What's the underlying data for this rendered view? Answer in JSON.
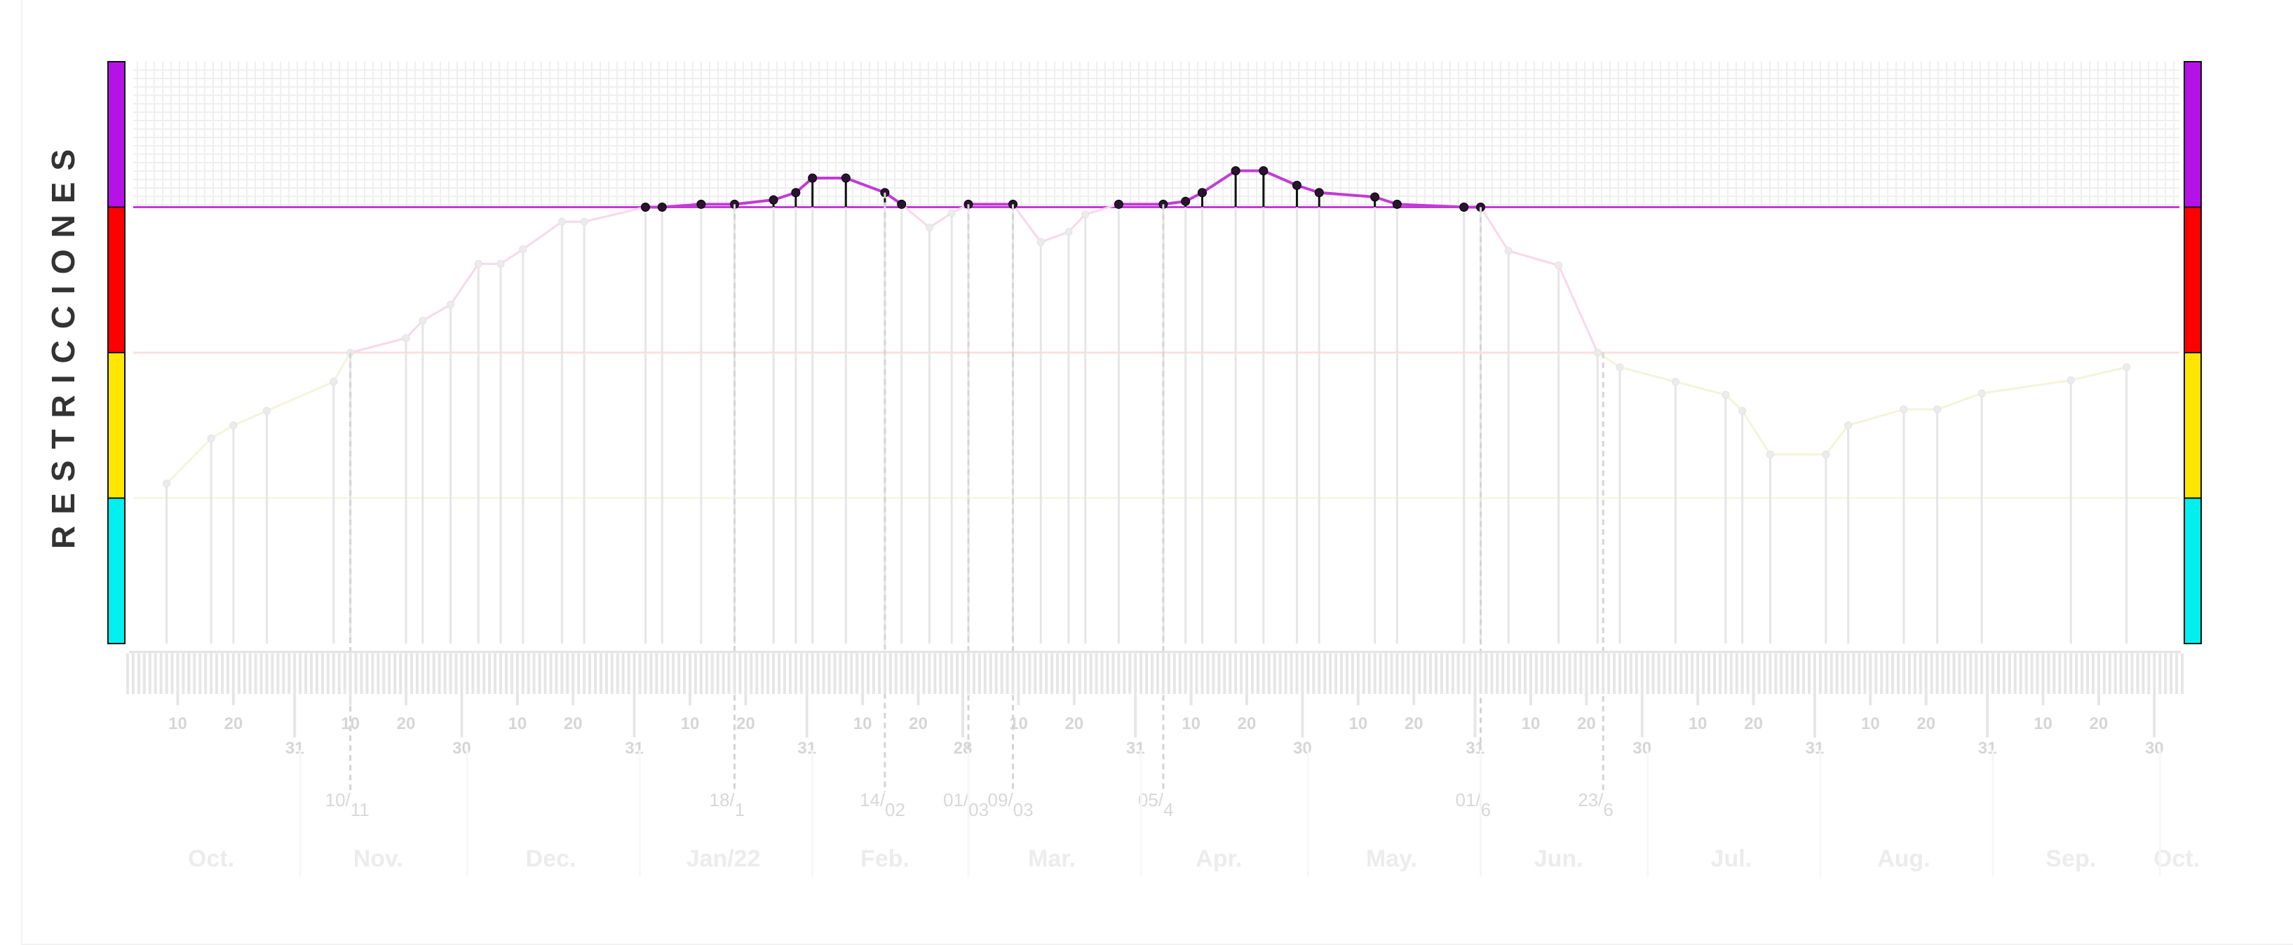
{
  "ylabel": "RESTRICCIONES",
  "colors": {
    "purple": "#b512e8",
    "red": "#ff0000",
    "yellow": "#ffe600",
    "cyan": "#00f0f0",
    "line_active": "#c23bd6",
    "marker_active": "#2a1330",
    "faded": "#e6e6e6"
  },
  "chart_data": {
    "type": "line",
    "title": "",
    "xlabel": "",
    "ylabel": "RESTRICCIONES",
    "x_range": [
      "2021-10-01",
      "2022-10-05"
    ],
    "y_range": [
      0,
      4
    ],
    "levels": [
      {
        "from": 0,
        "to": 1,
        "color": "#00f0f0"
      },
      {
        "from": 1,
        "to": 2,
        "color": "#ffe600"
      },
      {
        "from": 2,
        "to": 3,
        "color": "#ff0000"
      },
      {
        "from": 3,
        "to": 4,
        "color": "#b512e8"
      }
    ],
    "x_tick_labels": [
      {
        "date": "2021-10-10",
        "label": "10"
      },
      {
        "date": "2021-10-20",
        "label": "20"
      },
      {
        "date": "2021-10-31",
        "label": "31"
      },
      {
        "date": "2021-11-10",
        "label": "10"
      },
      {
        "date": "2021-11-20",
        "label": "20"
      },
      {
        "date": "2021-11-30",
        "label": "30"
      },
      {
        "date": "2021-12-10",
        "label": "10"
      },
      {
        "date": "2021-12-20",
        "label": "20"
      },
      {
        "date": "2021-12-31",
        "label": "31"
      },
      {
        "date": "2022-01-10",
        "label": "10"
      },
      {
        "date": "2022-01-20",
        "label": "20"
      },
      {
        "date": "2022-01-31",
        "label": "31"
      },
      {
        "date": "2022-02-10",
        "label": "10"
      },
      {
        "date": "2022-02-20",
        "label": "20"
      },
      {
        "date": "2022-02-28",
        "label": "28"
      },
      {
        "date": "2022-03-10",
        "label": "10"
      },
      {
        "date": "2022-03-20",
        "label": "20"
      },
      {
        "date": "2022-03-31",
        "label": "31"
      },
      {
        "date": "2022-04-10",
        "label": "10"
      },
      {
        "date": "2022-04-20",
        "label": "20"
      },
      {
        "date": "2022-04-30",
        "label": "30"
      },
      {
        "date": "2022-05-10",
        "label": "10"
      },
      {
        "date": "2022-05-20",
        "label": "20"
      },
      {
        "date": "2022-05-31",
        "label": "31"
      },
      {
        "date": "2022-06-10",
        "label": "10"
      },
      {
        "date": "2022-06-20",
        "label": "20"
      },
      {
        "date": "2022-06-30",
        "label": "30"
      },
      {
        "date": "2022-07-10",
        "label": "10"
      },
      {
        "date": "2022-07-20",
        "label": "20"
      },
      {
        "date": "2022-07-31",
        "label": "31"
      },
      {
        "date": "2022-08-10",
        "label": "10"
      },
      {
        "date": "2022-08-20",
        "label": "20"
      },
      {
        "date": "2022-08-31",
        "label": "31"
      },
      {
        "date": "2022-09-10",
        "label": "10"
      },
      {
        "date": "2022-09-20",
        "label": "20"
      },
      {
        "date": "2022-09-30",
        "label": "30"
      }
    ],
    "month_labels": [
      {
        "date": "2021-10-16",
        "label": "Oct."
      },
      {
        "date": "2021-11-15",
        "label": "Nov."
      },
      {
        "date": "2021-12-16",
        "label": "Dec."
      },
      {
        "date": "2022-01-16",
        "label": "Jan/22"
      },
      {
        "date": "2022-02-14",
        "label": "Feb."
      },
      {
        "date": "2022-03-16",
        "label": "Mar."
      },
      {
        "date": "2022-04-15",
        "label": "Apr."
      },
      {
        "date": "2022-05-16",
        "label": "May."
      },
      {
        "date": "2022-06-15",
        "label": "Jun."
      },
      {
        "date": "2022-07-16",
        "label": "Jul."
      },
      {
        "date": "2022-08-16",
        "label": "Aug."
      },
      {
        "date": "2022-09-15",
        "label": "Sep."
      },
      {
        "date": "2022-10-04",
        "label": "Oct."
      }
    ],
    "date_markers": [
      {
        "date": "2021-11-10",
        "day": "10",
        "month": "11"
      },
      {
        "date": "2022-01-18",
        "day": "18",
        "month": "1"
      },
      {
        "date": "2022-02-14",
        "day": "14",
        "month": "02"
      },
      {
        "date": "2022-03-01",
        "day": "01",
        "month": "03"
      },
      {
        "date": "2022-03-09",
        "day": "09",
        "month": "03"
      },
      {
        "date": "2022-04-05",
        "day": "05",
        "month": "4"
      },
      {
        "date": "2022-06-01",
        "day": "01",
        "month": "6"
      },
      {
        "date": "2022-06-23",
        "day": "23",
        "month": "6"
      }
    ],
    "series": [
      {
        "points": [
          {
            "x": "2021-10-08",
            "y": 1.1
          },
          {
            "x": "2021-10-16",
            "y": 1.41
          },
          {
            "x": "2021-10-20",
            "y": 1.5
          },
          {
            "x": "2021-10-26",
            "y": 1.6
          },
          {
            "x": "2021-11-07",
            "y": 1.8
          },
          {
            "x": "2021-11-10",
            "y": 2.0
          },
          {
            "x": "2021-11-20",
            "y": 2.1
          },
          {
            "x": "2021-11-23",
            "y": 2.22
          },
          {
            "x": "2021-11-28",
            "y": 2.33
          },
          {
            "x": "2021-12-03",
            "y": 2.61
          },
          {
            "x": "2021-12-07",
            "y": 2.61
          },
          {
            "x": "2021-12-11",
            "y": 2.71
          },
          {
            "x": "2021-12-18",
            "y": 2.9
          },
          {
            "x": "2021-12-22",
            "y": 2.9
          },
          {
            "x": "2022-01-02",
            "y": 3.0
          },
          {
            "x": "2022-01-05",
            "y": 3.0
          },
          {
            "x": "2022-01-12",
            "y": 3.02
          },
          {
            "x": "2022-01-18",
            "y": 3.02
          },
          {
            "x": "2022-01-25",
            "y": 3.05
          },
          {
            "x": "2022-01-29",
            "y": 3.1
          },
          {
            "x": "2022-02-01",
            "y": 3.2
          },
          {
            "x": "2022-02-07",
            "y": 3.2
          },
          {
            "x": "2022-02-14",
            "y": 3.1
          },
          {
            "x": "2022-02-17",
            "y": 3.02
          },
          {
            "x": "2022-02-22",
            "y": 2.86
          },
          {
            "x": "2022-02-26",
            "y": 2.96
          },
          {
            "x": "2022-03-01",
            "y": 3.02
          },
          {
            "x": "2022-03-09",
            "y": 3.02
          },
          {
            "x": "2022-03-14",
            "y": 2.76
          },
          {
            "x": "2022-03-19",
            "y": 2.83
          },
          {
            "x": "2022-03-22",
            "y": 2.95
          },
          {
            "x": "2022-03-28",
            "y": 3.02
          },
          {
            "x": "2022-04-05",
            "y": 3.02
          },
          {
            "x": "2022-04-09",
            "y": 3.04
          },
          {
            "x": "2022-04-12",
            "y": 3.1
          },
          {
            "x": "2022-04-18",
            "y": 3.25
          },
          {
            "x": "2022-04-23",
            "y": 3.25
          },
          {
            "x": "2022-04-29",
            "y": 3.15
          },
          {
            "x": "2022-05-03",
            "y": 3.1
          },
          {
            "x": "2022-05-13",
            "y": 3.07
          },
          {
            "x": "2022-05-17",
            "y": 3.02
          },
          {
            "x": "2022-05-29",
            "y": 3.0
          },
          {
            "x": "2022-06-01",
            "y": 3.0
          },
          {
            "x": "2022-06-06",
            "y": 2.7
          },
          {
            "x": "2022-06-15",
            "y": 2.6
          },
          {
            "x": "2022-06-22",
            "y": 2.0
          },
          {
            "x": "2022-06-26",
            "y": 1.9
          },
          {
            "x": "2022-07-06",
            "y": 1.8
          },
          {
            "x": "2022-07-15",
            "y": 1.71
          },
          {
            "x": "2022-07-18",
            "y": 1.6
          },
          {
            "x": "2022-07-23",
            "y": 1.3
          },
          {
            "x": "2022-08-02",
            "y": 1.3
          },
          {
            "x": "2022-08-06",
            "y": 1.5
          },
          {
            "x": "2022-08-16",
            "y": 1.61
          },
          {
            "x": "2022-08-22",
            "y": 1.61
          },
          {
            "x": "2022-08-30",
            "y": 1.72
          },
          {
            "x": "2022-09-15",
            "y": 1.81
          },
          {
            "x": "2022-09-25",
            "y": 1.9
          }
        ]
      }
    ]
  }
}
